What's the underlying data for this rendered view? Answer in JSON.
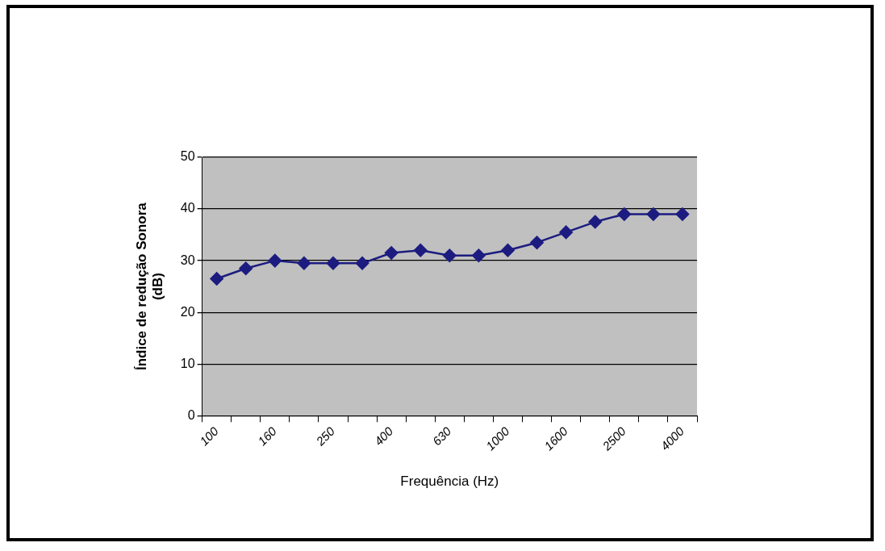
{
  "chart_data": {
    "type": "line",
    "xlabel": "Frequência (Hz)",
    "ylabel": "Índice de redução Sonora\n(dB)",
    "categories": [
      "100",
      null,
      "160",
      null,
      "250",
      null,
      "400",
      null,
      "630",
      null,
      "1000",
      null,
      "1600",
      null,
      "2500",
      null,
      "4000"
    ],
    "series": [
      {
        "color": "#1c1c80",
        "values": [
          26.5,
          28.5,
          30,
          29.5,
          29.5,
          29.5,
          31.5,
          32,
          31,
          31,
          32,
          33.5,
          35.5,
          37.5,
          39,
          39,
          39
        ]
      }
    ],
    "ylim": [
      0,
      50
    ],
    "yticks": [
      0,
      10,
      20,
      30,
      40,
      50
    ],
    "grid": "y",
    "legend": false,
    "marker": "diamond",
    "line_style": "solid"
  }
}
